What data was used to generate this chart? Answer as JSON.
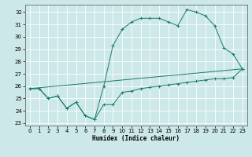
{
  "xlabel": "Humidex (Indice chaleur)",
  "bg_color": "#cce8e8",
  "grid_color": "#ffffff",
  "line_color": "#1a7a6a",
  "xlim": [
    -0.5,
    23.5
  ],
  "ylim": [
    22.8,
    32.6
  ],
  "yticks": [
    23,
    24,
    25,
    26,
    27,
    28,
    29,
    30,
    31,
    32
  ],
  "xticks": [
    0,
    1,
    2,
    3,
    4,
    5,
    6,
    7,
    8,
    9,
    10,
    11,
    12,
    13,
    14,
    15,
    16,
    17,
    18,
    19,
    20,
    21,
    22,
    23
  ],
  "line1_x": [
    0,
    1,
    2,
    3,
    4,
    5,
    6,
    7,
    8,
    9,
    10,
    11,
    12,
    13,
    14,
    15,
    16,
    17,
    18,
    19,
    20,
    21,
    22,
    23
  ],
  "line1_y": [
    25.8,
    25.8,
    25.0,
    25.2,
    24.2,
    24.7,
    23.6,
    23.3,
    24.5,
    24.5,
    25.5,
    25.6,
    25.8,
    25.9,
    26.0,
    26.1,
    26.2,
    26.3,
    26.4,
    26.5,
    26.6,
    26.6,
    26.7,
    27.4
  ],
  "line2_x": [
    0,
    23
  ],
  "line2_y": [
    25.8,
    27.4
  ],
  "line3_x": [
    0,
    1,
    2,
    3,
    4,
    5,
    6,
    7,
    8,
    9,
    10,
    11,
    12,
    13,
    14,
    15,
    16,
    17,
    18,
    19,
    20,
    21,
    22,
    23
  ],
  "line3_y": [
    25.8,
    25.8,
    25.0,
    25.2,
    24.2,
    24.7,
    23.6,
    23.3,
    26.0,
    29.3,
    30.6,
    31.2,
    31.5,
    31.5,
    31.5,
    31.2,
    30.9,
    32.2,
    32.0,
    31.7,
    30.9,
    29.1,
    28.6,
    27.4
  ],
  "xlabel_fontsize": 5.5,
  "tick_fontsize": 5,
  "linewidth": 0.7,
  "markersize": 2.5
}
